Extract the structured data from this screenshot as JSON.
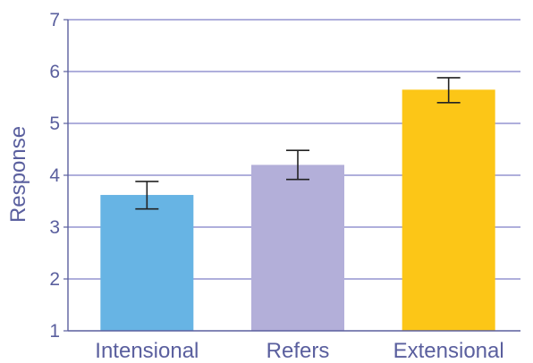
{
  "chart_data": {
    "type": "bar",
    "title": "",
    "xlabel": "",
    "ylabel": "Response",
    "ylim": [
      1,
      7
    ],
    "yticks": [
      1,
      2,
      3,
      4,
      5,
      6,
      7
    ],
    "grid": true,
    "categories": [
      "Intensional",
      "Refers",
      "Extensional"
    ],
    "values": [
      3.62,
      4.2,
      5.65
    ],
    "error_low": [
      3.35,
      3.92,
      5.4
    ],
    "error_high": [
      3.88,
      4.48,
      5.88
    ],
    "colors": [
      "#67b4e4",
      "#b3afd9",
      "#fcc617"
    ],
    "axis_color": "#5a5f9e",
    "grid_color": "#7f7fc8",
    "errorbar_color": "#222222"
  }
}
